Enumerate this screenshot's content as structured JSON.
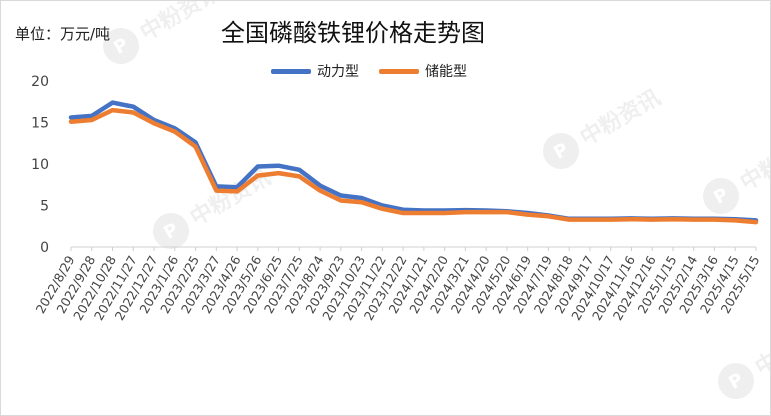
{
  "unit_label": "单位：万元/吨",
  "watermark": "中粉资讯",
  "chart_data": {
    "type": "line",
    "title": "全国磷酸铁锂价格走势图",
    "xlabel": "",
    "ylabel": "",
    "ylim": [
      0,
      20
    ],
    "yticks": [
      0,
      5,
      10,
      15,
      20
    ],
    "grid": false,
    "legend_position": "top-center",
    "x_tick_labels": [
      "2022/8/29",
      "2022/9/28",
      "2022/10/28",
      "2022/11/27",
      "2022/12/27",
      "2023/1/26",
      "2023/2/25",
      "2023/3/27",
      "2023/4/26",
      "2023/5/26",
      "2023/6/25",
      "2023/7/25",
      "2023/8/24",
      "2023/9/23",
      "2023/10/23",
      "2023/11/22",
      "2023/12/22",
      "2024/1/21",
      "2024/2/20",
      "2024/3/21",
      "2024/4/20",
      "2024/5/20",
      "2024/6/19",
      "2024/7/19",
      "2024/8/18",
      "2024/9/17",
      "2024/10/17",
      "2024/11/16",
      "2024/12/16",
      "2025/1/15",
      "2025/2/14",
      "2025/3/16",
      "2025/4/15",
      "2025/5/15"
    ],
    "series": [
      {
        "name": "动力型",
        "color": "#4472C4",
        "values": [
          15.6,
          15.8,
          17.4,
          16.9,
          15.3,
          14.3,
          12.6,
          7.3,
          7.2,
          9.7,
          9.8,
          9.3,
          7.4,
          6.2,
          5.9,
          5.0,
          4.5,
          4.4,
          4.4,
          4.45,
          4.4,
          4.3,
          4.1,
          3.8,
          3.4,
          3.4,
          3.4,
          3.45,
          3.4,
          3.45,
          3.4,
          3.4,
          3.35,
          3.2
        ]
      },
      {
        "name": "储能型",
        "color": "#ED7D31",
        "values": [
          15.1,
          15.3,
          16.5,
          16.2,
          14.9,
          13.9,
          12.1,
          6.8,
          6.7,
          8.6,
          8.9,
          8.5,
          6.8,
          5.6,
          5.4,
          4.6,
          4.1,
          4.1,
          4.1,
          4.2,
          4.2,
          4.2,
          3.9,
          3.7,
          3.3,
          3.3,
          3.3,
          3.35,
          3.3,
          3.35,
          3.3,
          3.3,
          3.2,
          3.0
        ]
      }
    ]
  }
}
